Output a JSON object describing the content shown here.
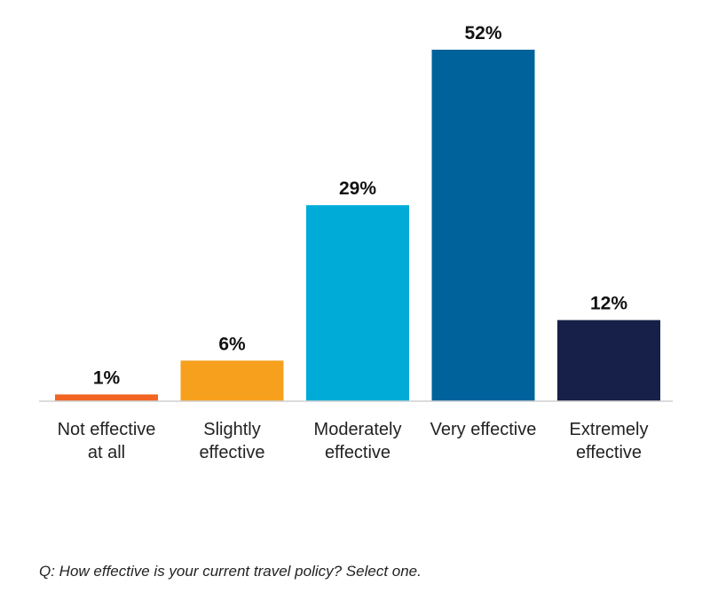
{
  "chart_data": {
    "type": "bar",
    "categories": [
      [
        "Not effective",
        "at all"
      ],
      [
        "Slightly",
        "effective"
      ],
      [
        "Moderately",
        "effective"
      ],
      [
        "Very effective"
      ],
      [
        "Extremely",
        "effective"
      ]
    ],
    "values": [
      1,
      6,
      29,
      52,
      12
    ],
    "value_labels": [
      "1%",
      "6%",
      "29%",
      "52%",
      "12%"
    ],
    "colors": [
      "#f26522",
      "#f7a01d",
      "#00acd7",
      "#00629b",
      "#172048"
    ],
    "ylim": [
      0,
      52
    ],
    "grid": false,
    "legend": "none"
  },
  "footer": {
    "question": "Q: How effective is your current travel policy? Select one."
  }
}
